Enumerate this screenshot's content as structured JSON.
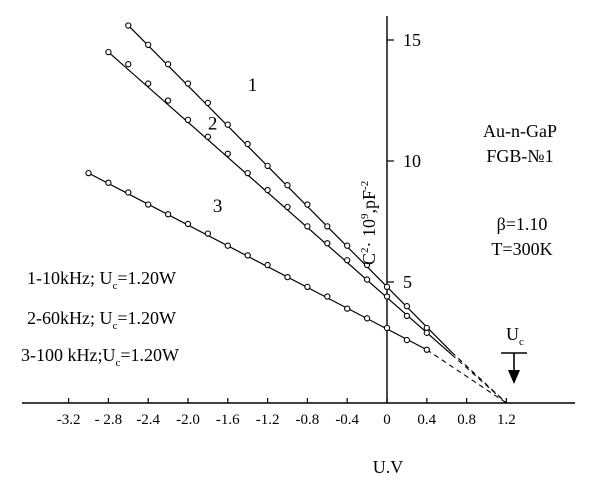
{
  "chart_data": {
    "type": "line",
    "xlabel": "U.V",
    "ylabel_main": "C",
    "ylabel_sup1": "2",
    "ylabel_mid": "· 10",
    "ylabel_sup2": "9",
    "ylabel_end": ",pF",
    "ylabel_sup3": "-2",
    "xlim": [
      -3.2,
      1.6
    ],
    "ylim": [
      0,
      16
    ],
    "x_ticks": [
      -3.2,
      -2.8,
      -2.4,
      -2.0,
      -1.6,
      -1.2,
      -0.8,
      -0.4,
      0,
      0.4,
      0.8,
      1.2
    ],
    "x_tick_labels": [
      "-3.2",
      "- 2.8",
      "-2.4",
      "-2.0",
      "-1.6",
      "-1.2",
      "-0.8",
      "-0.4",
      "0",
      "0.4",
      "0.8",
      "1.2"
    ],
    "y_ticks": [
      5,
      10,
      15
    ],
    "y_tick_labels": [
      "5",
      "10",
      "15"
    ],
    "sample_label": "Au-n-GaP",
    "sample_id": "FGB-№1",
    "beta": "β=1.10",
    "temperature": "T=300K",
    "uc_marker": {
      "x": 1.2,
      "label": "U",
      "sub": "c"
    },
    "legend": [
      {
        "prefix": "1-10kHz; U",
        "sub": "c",
        "suffix": "=1.20W"
      },
      {
        "prefix": "2-60kHz; U",
        "sub": "c",
        "suffix": "=1.20W"
      },
      {
        "prefix": "3-100 kHz;U",
        "sub": "c",
        "suffix": "=1.20W"
      }
    ],
    "series": [
      {
        "name": "1",
        "label_at": [
          -1.4,
          12.9
        ],
        "x": [
          -2.6,
          -2.4,
          -2.2,
          -2.0,
          -1.8,
          -1.6,
          -1.4,
          -1.2,
          -1.0,
          -0.8,
          -0.6,
          -0.4,
          -0.2,
          0.0,
          0.2,
          0.4
        ],
        "y": [
          15.6,
          14.8,
          14.0,
          13.2,
          12.4,
          11.5,
          10.7,
          9.8,
          9.0,
          8.2,
          7.3,
          6.5,
          5.7,
          4.8,
          4.0,
          3.1
        ],
        "line_end": [
          0.65,
          2.1
        ],
        "extrapolate_to": [
          1.2,
          0
        ]
      },
      {
        "name": "2",
        "label_at": [
          -1.8,
          11.3
        ],
        "x": [
          -2.8,
          -2.6,
          -2.4,
          -2.2,
          -2.0,
          -1.8,
          -1.6,
          -1.4,
          -1.2,
          -1.0,
          -0.8,
          -0.6,
          -0.4,
          -0.2,
          0.0,
          0.2,
          0.4
        ],
        "y": [
          14.5,
          14.0,
          13.2,
          12.5,
          11.7,
          11.0,
          10.3,
          9.5,
          8.8,
          8.1,
          7.3,
          6.6,
          5.9,
          5.1,
          4.4,
          3.6,
          2.9
        ],
        "line_end": [
          0.65,
          2.0
        ],
        "extrapolate_to": [
          1.2,
          0
        ]
      },
      {
        "name": "3",
        "label_at": [
          -1.75,
          7.9
        ],
        "x": [
          -3.0,
          -2.8,
          -2.6,
          -2.4,
          -2.2,
          -2.0,
          -1.8,
          -1.6,
          -1.4,
          -1.2,
          -1.0,
          -0.8,
          -0.6,
          -0.4,
          -0.2,
          0.0,
          0.2,
          0.4
        ],
        "y": [
          9.5,
          9.1,
          8.7,
          8.2,
          7.8,
          7.4,
          7.0,
          6.5,
          6.1,
          5.7,
          5.2,
          4.8,
          4.4,
          3.9,
          3.5,
          3.1,
          2.6,
          2.2
        ],
        "line_end": [
          0.4,
          2.2
        ],
        "extrapolate_to": [
          1.2,
          0
        ]
      }
    ]
  }
}
